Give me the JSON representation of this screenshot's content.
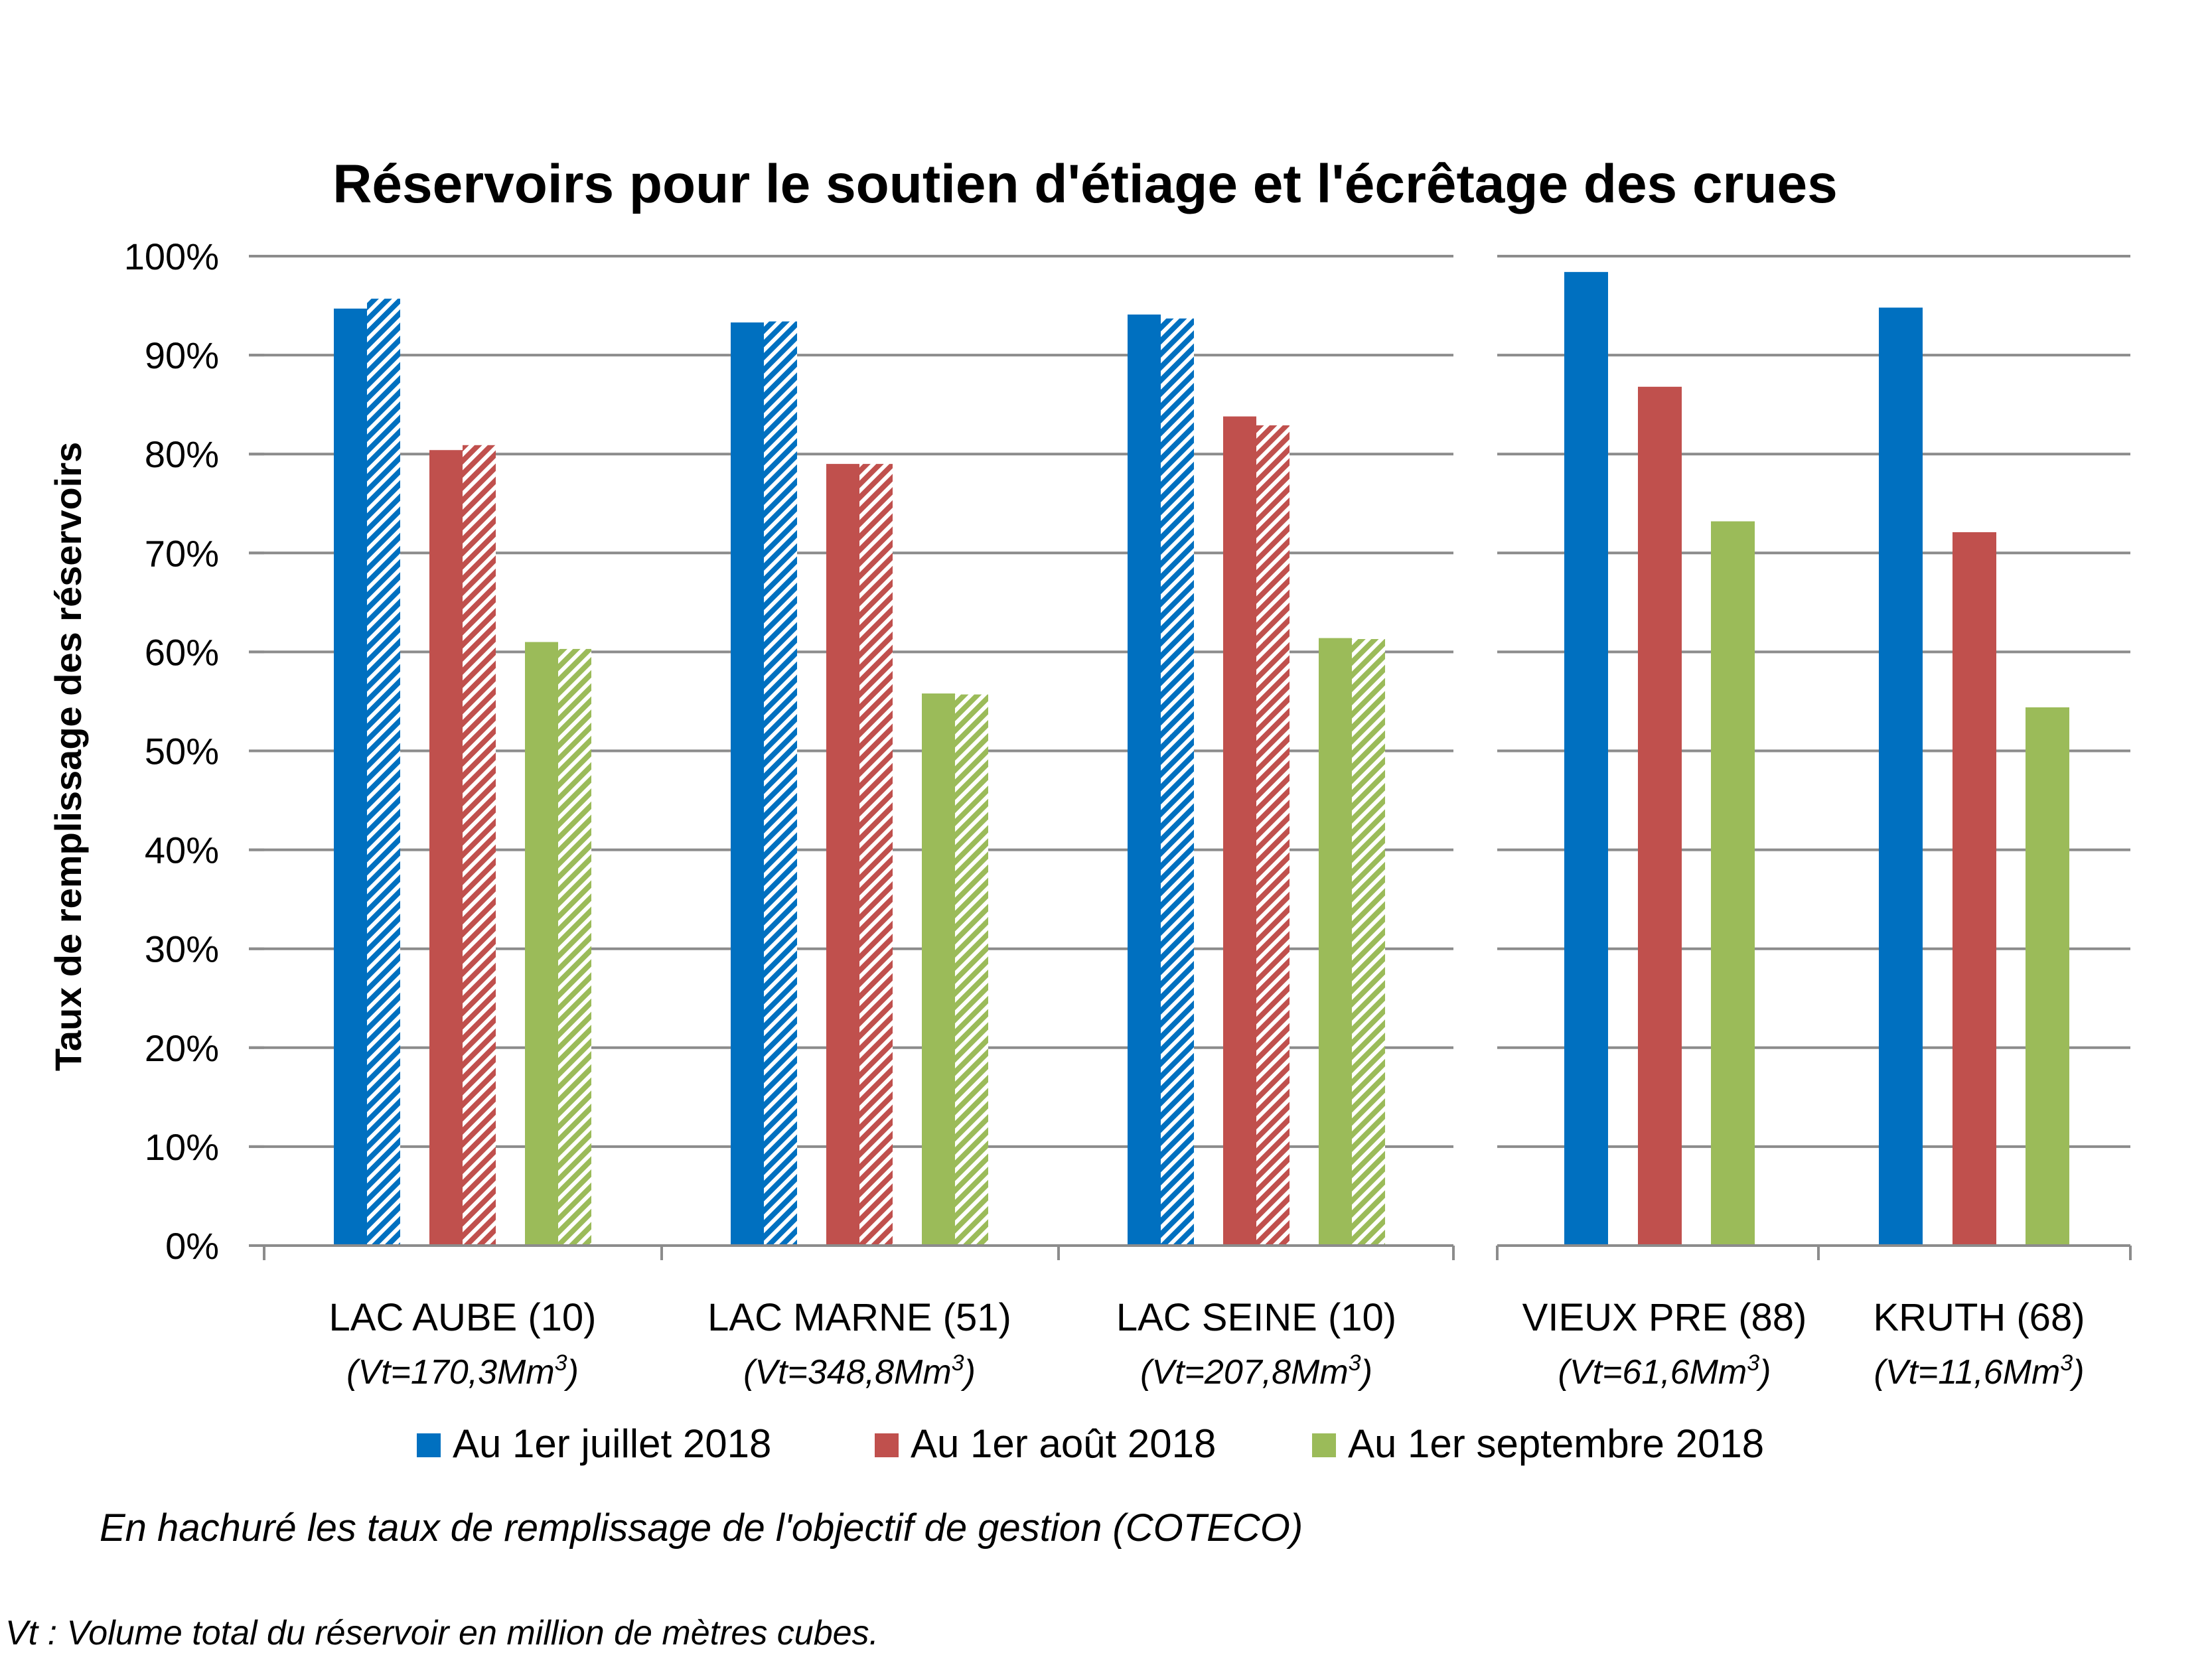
{
  "chart_data": {
    "type": "bar",
    "title": "Réservoirs pour le soutien d'étiage et l'écrêtage des crues",
    "ylabel": "Taux de remplissage des réservoirs",
    "xlabel": "",
    "ylim": [
      0,
      100
    ],
    "yticks": [
      "0%",
      "10%",
      "20%",
      "30%",
      "40%",
      "50%",
      "60%",
      "70%",
      "80%",
      "90%",
      "100%"
    ],
    "grid": true,
    "legend_position": "bottom",
    "panels": [
      {
        "categories": [
          {
            "name": "LAC AUBE (10)",
            "volume_prefix": "(Vt=170,3Mm",
            "volume_sup": "3",
            "volume_suffix": ")"
          },
          {
            "name": "LAC MARNE (51)",
            "volume_prefix": "(Vt=348,8Mm",
            "volume_sup": "3",
            "volume_suffix": ")"
          },
          {
            "name": "LAC SEINE (10)",
            "volume_prefix": "(Vt=207,8Mm",
            "volume_sup": "3",
            "volume_suffix": ")"
          }
        ],
        "series": [
          {
            "name": "Au 1er juillet 2018",
            "values": [
              94.7,
              93.3,
              94.1
            ],
            "objective": [
              95.7,
              93.4,
              93.7
            ]
          },
          {
            "name": "Au 1er août 2018",
            "values": [
              80.4,
              79.0,
              83.8
            ],
            "objective": [
              80.9,
              79.0,
              82.9
            ]
          },
          {
            "name": "Au 1er septembre 2018",
            "values": [
              61.0,
              55.8,
              61.4
            ],
            "objective": [
              60.3,
              55.7,
              61.3
            ]
          }
        ]
      },
      {
        "categories": [
          {
            "name": "VIEUX PRE (88)",
            "volume_prefix": "(Vt=61,6Mm",
            "volume_sup": "3",
            "volume_suffix": ")"
          },
          {
            "name": "KRUTH (68)",
            "volume_prefix": "(Vt=11,6Mm",
            "volume_sup": "3",
            "volume_suffix": ")"
          }
        ],
        "series": [
          {
            "name": "Au 1er juillet 2018",
            "values": [
              98.4,
              94.8
            ]
          },
          {
            "name": "Au 1er août 2018",
            "values": [
              86.8,
              72.1
            ]
          },
          {
            "name": "Au 1er septembre 2018",
            "values": [
              73.2,
              54.4
            ]
          }
        ]
      }
    ],
    "legend": [
      {
        "name": "Au 1er juillet 2018",
        "color": "#0070C0"
      },
      {
        "name": "Au 1er août 2018",
        "color": "#C0504D"
      },
      {
        "name": "Au 1er septembre 2018",
        "color": "#9BBB59"
      }
    ],
    "note": "En hachuré les taux de remplissage de l'objectif de gestion (COTECO)",
    "footnote": "Vt : Volume total du réservoir en million de mètres cubes."
  }
}
